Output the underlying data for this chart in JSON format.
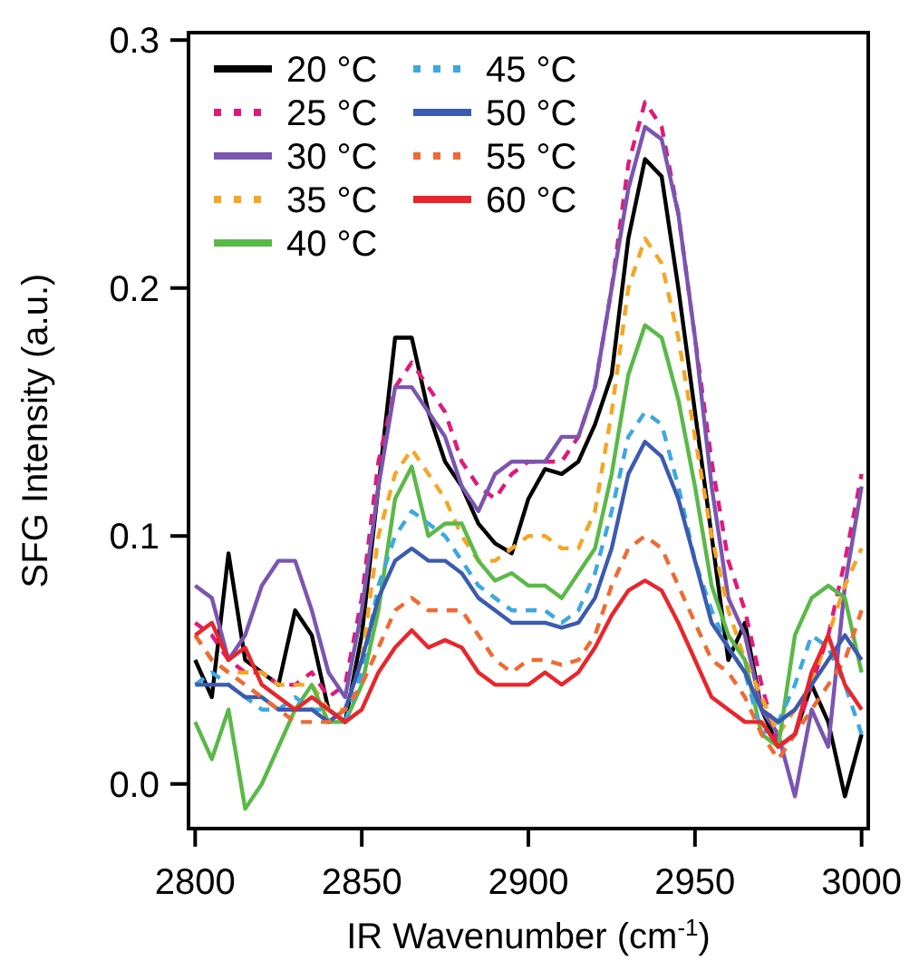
{
  "chart_data": {
    "type": "line",
    "xlabel": "IR Wavenumber (cm$^{-1}$)",
    "ylabel": "SFG Intensity (a.u.)",
    "x": [
      2800,
      2805,
      2810,
      2815,
      2820,
      2825,
      2830,
      2835,
      2840,
      2845,
      2850,
      2855,
      2860,
      2865,
      2870,
      2875,
      2880,
      2885,
      2890,
      2895,
      2900,
      2905,
      2910,
      2915,
      2920,
      2925,
      2930,
      2935,
      2940,
      2945,
      2950,
      2955,
      2960,
      2965,
      2970,
      2975,
      2980,
      2985,
      2990,
      2995,
      3000
    ],
    "xlim": [
      2798,
      3002
    ],
    "xticks": [
      2800,
      2850,
      2900,
      2950,
      3000
    ],
    "ylim": [
      -0.018,
      0.303
    ],
    "yticks": [
      {
        "value": 0,
        "label": "0.0"
      },
      {
        "value": 0.1,
        "label": "0.1"
      },
      {
        "value": 0.2,
        "label": "0.2"
      },
      {
        "value": 0.3,
        "label": "0.3"
      }
    ],
    "grid": false,
    "legend": "top left",
    "marker": "none",
    "series": [
      {
        "name": "20 °C",
        "color": "#000000",
        "line_style": "solid",
        "values": [
          0.05,
          0.035,
          0.093,
          0.05,
          0.045,
          0.04,
          0.07,
          0.06,
          0.03,
          0.025,
          0.06,
          0.12,
          0.18,
          0.18,
          0.15,
          0.13,
          0.12,
          0.105,
          0.097,
          0.093,
          0.115,
          0.127,
          0.125,
          0.13,
          0.145,
          0.165,
          0.22,
          0.252,
          0.245,
          0.2,
          0.15,
          0.1,
          0.05,
          0.065,
          0.03,
          0.015,
          0.02,
          0.04,
          0.025,
          -0.005,
          0.02
        ]
      },
      {
        "name": "25 °C",
        "color": "#e0197a",
        "line_style": "dashed",
        "values": [
          0.065,
          0.06,
          0.05,
          0.045,
          0.045,
          0.04,
          0.04,
          0.045,
          0.035,
          0.04,
          0.075,
          0.13,
          0.16,
          0.17,
          0.16,
          0.15,
          0.13,
          0.12,
          0.115,
          0.125,
          0.13,
          0.13,
          0.13,
          0.14,
          0.16,
          0.2,
          0.25,
          0.275,
          0.265,
          0.23,
          0.18,
          0.13,
          0.09,
          0.07,
          0.04,
          0.015,
          0.02,
          0.04,
          0.06,
          0.09,
          0.125
        ]
      },
      {
        "name": "30 °C",
        "color": "#7b55b0",
        "line_style": "solid",
        "values": [
          0.08,
          0.075,
          0.05,
          0.06,
          0.08,
          0.09,
          0.09,
          0.07,
          0.045,
          0.035,
          0.07,
          0.12,
          0.16,
          0.16,
          0.15,
          0.14,
          0.12,
          0.11,
          0.125,
          0.13,
          0.13,
          0.13,
          0.14,
          0.14,
          0.16,
          0.2,
          0.24,
          0.265,
          0.26,
          0.23,
          0.18,
          0.12,
          0.075,
          0.06,
          0.03,
          0.02,
          -0.005,
          0.03,
          0.015,
          0.08,
          0.12
        ]
      },
      {
        "name": "35 °C",
        "color": "#f5a623",
        "line_style": "dashed",
        "values": [
          0.06,
          0.05,
          0.045,
          0.045,
          0.045,
          0.04,
          0.04,
          0.04,
          0.03,
          0.03,
          0.05,
          0.1,
          0.125,
          0.135,
          0.125,
          0.115,
          0.1,
          0.09,
          0.09,
          0.095,
          0.1,
          0.1,
          0.095,
          0.095,
          0.11,
          0.15,
          0.2,
          0.22,
          0.21,
          0.18,
          0.14,
          0.1,
          0.07,
          0.05,
          0.035,
          0.02,
          0.03,
          0.04,
          0.06,
          0.08,
          0.095
        ]
      },
      {
        "name": "40 °C",
        "color": "#5ab947",
        "line_style": "solid",
        "values": [
          0.025,
          0.01,
          0.03,
          -0.01,
          0.0,
          0.015,
          0.03,
          0.04,
          0.025,
          0.025,
          0.04,
          0.07,
          0.115,
          0.128,
          0.1,
          0.105,
          0.105,
          0.09,
          0.082,
          0.085,
          0.08,
          0.08,
          0.075,
          0.085,
          0.095,
          0.125,
          0.165,
          0.185,
          0.18,
          0.155,
          0.12,
          0.08,
          0.06,
          0.05,
          0.02,
          0.015,
          0.06,
          0.075,
          0.08,
          0.075,
          0.045
        ]
      },
      {
        "name": "45 °C",
        "color": "#3da8e0",
        "line_style": "dashed",
        "values": [
          0.04,
          0.045,
          0.04,
          0.035,
          0.03,
          0.03,
          0.035,
          0.03,
          0.03,
          0.025,
          0.045,
          0.08,
          0.1,
          0.11,
          0.105,
          0.1,
          0.09,
          0.08,
          0.075,
          0.07,
          0.07,
          0.07,
          0.065,
          0.07,
          0.085,
          0.11,
          0.14,
          0.15,
          0.145,
          0.12,
          0.09,
          0.07,
          0.055,
          0.045,
          0.02,
          0.025,
          0.04,
          0.06,
          0.055,
          0.04,
          0.02
        ]
      },
      {
        "name": "50 °C",
        "color": "#3b5bb0",
        "line_style": "solid",
        "values": [
          0.04,
          0.04,
          0.04,
          0.035,
          0.035,
          0.03,
          0.03,
          0.03,
          0.025,
          0.03,
          0.05,
          0.075,
          0.09,
          0.095,
          0.09,
          0.09,
          0.085,
          0.075,
          0.07,
          0.065,
          0.065,
          0.065,
          0.063,
          0.065,
          0.075,
          0.095,
          0.125,
          0.138,
          0.132,
          0.115,
          0.09,
          0.065,
          0.055,
          0.045,
          0.03,
          0.025,
          0.03,
          0.04,
          0.05,
          0.06,
          0.05
        ]
      },
      {
        "name": "55 °C",
        "color": "#f06a32",
        "line_style": "dashed",
        "values": [
          0.06,
          0.05,
          0.045,
          0.04,
          0.035,
          0.03,
          0.025,
          0.025,
          0.025,
          0.03,
          0.04,
          0.055,
          0.07,
          0.075,
          0.07,
          0.07,
          0.07,
          0.06,
          0.05,
          0.045,
          0.05,
          0.05,
          0.048,
          0.05,
          0.06,
          0.08,
          0.095,
          0.1,
          0.095,
          0.08,
          0.065,
          0.05,
          0.045,
          0.035,
          0.02,
          0.01,
          0.02,
          0.03,
          0.04,
          0.05,
          0.07
        ]
      },
      {
        "name": "60 °C",
        "color": "#e8262b",
        "line_style": "solid",
        "values": [
          0.06,
          0.065,
          0.05,
          0.055,
          0.04,
          0.035,
          0.03,
          0.035,
          0.03,
          0.025,
          0.03,
          0.045,
          0.055,
          0.062,
          0.055,
          0.058,
          0.055,
          0.045,
          0.04,
          0.04,
          0.04,
          0.045,
          0.04,
          0.045,
          0.055,
          0.068,
          0.078,
          0.082,
          0.078,
          0.065,
          0.05,
          0.035,
          0.03,
          0.025,
          0.025,
          0.015,
          0.02,
          0.045,
          0.06,
          0.04,
          0.03
        ]
      }
    ]
  }
}
